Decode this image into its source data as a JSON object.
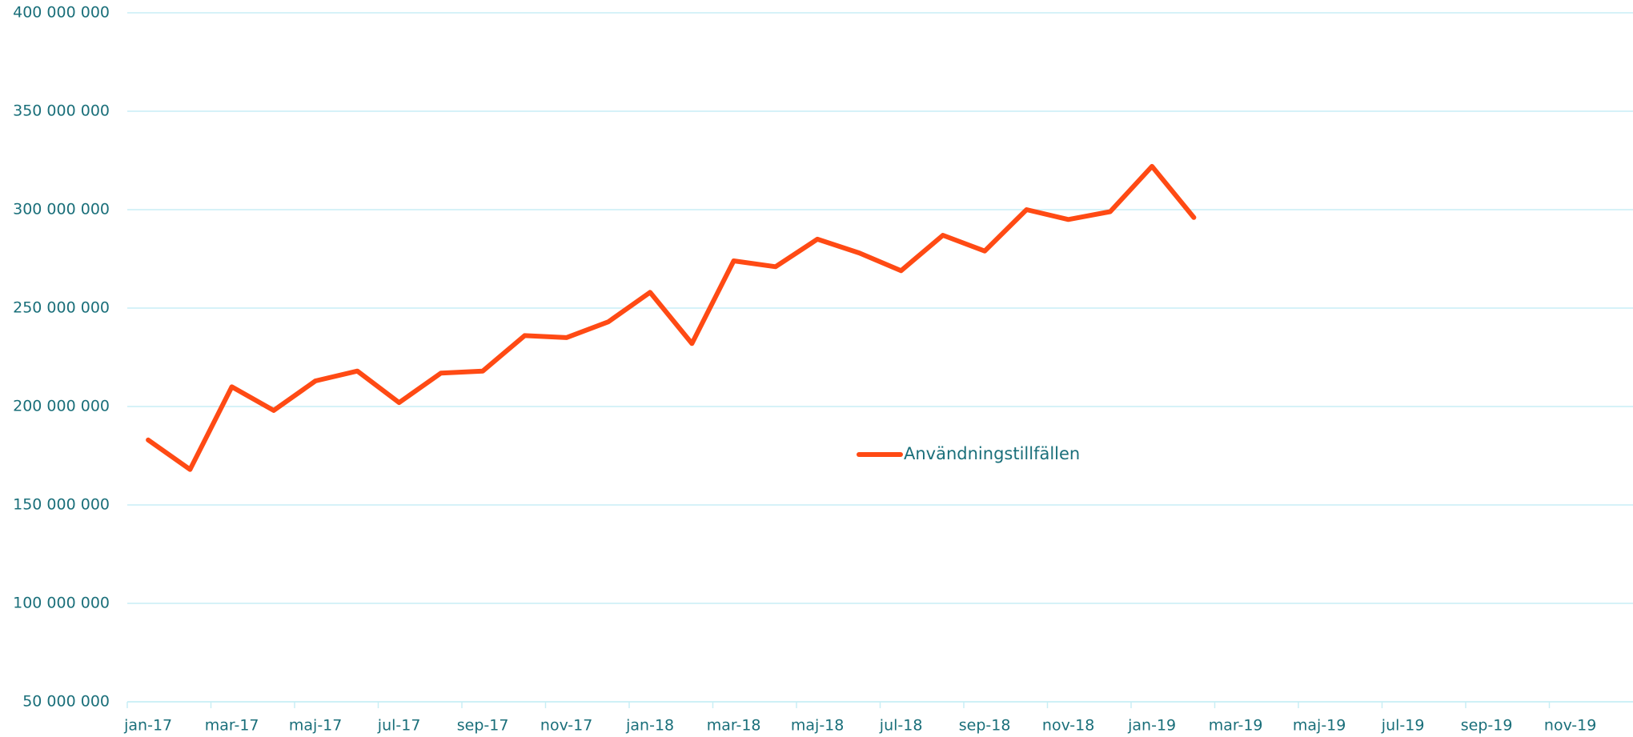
{
  "chart_data": {
    "type": "line",
    "categories": [
      "jan-17",
      null,
      "mar-17",
      null,
      "maj-17",
      null,
      "jul-17",
      null,
      "sep-17",
      null,
      "nov-17",
      null,
      "jan-18",
      null,
      "mar-18",
      null,
      "maj-18",
      null,
      "jul-18",
      null,
      "sep-18",
      null,
      "nov-18",
      null,
      "jan-19",
      null,
      "mar-19",
      null,
      "maj-19",
      null,
      "jul-19",
      null,
      "sep-19",
      null,
      "nov-19",
      null
    ],
    "series": [
      {
        "name": "Användningstillfällen",
        "color": "#ff4a14",
        "values": [
          183000000,
          168000000,
          210000000,
          198000000,
          213000000,
          218000000,
          202000000,
          217000000,
          218000000,
          236000000,
          235000000,
          243000000,
          258000000,
          232000000,
          274000000,
          271000000,
          285000000,
          278000000,
          269000000,
          287000000,
          279000000,
          300000000,
          295000000,
          299000000,
          322000000,
          296000000,
          null,
          null,
          null,
          null,
          null,
          null,
          null,
          null,
          null,
          null
        ]
      }
    ],
    "ylim": [
      50000000,
      400000000
    ],
    "yticks": [
      {
        "value": 50000000,
        "label": "50 000 000"
      },
      {
        "value": 100000000,
        "label": "100 000 000"
      },
      {
        "value": 150000000,
        "label": "150 000 000"
      },
      {
        "value": 200000000,
        "label": "200 000 000"
      },
      {
        "value": 250000000,
        "label": "250 000 000"
      },
      {
        "value": 300000000,
        "label": "300 000 000"
      },
      {
        "value": 350000000,
        "label": "350 000 000"
      },
      {
        "value": 400000000,
        "label": "400 000 000"
      }
    ],
    "grid": true,
    "legend": "center"
  }
}
